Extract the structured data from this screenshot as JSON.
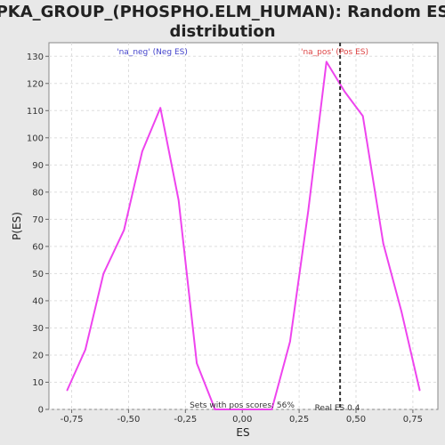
{
  "chart_data": {
    "type": "line",
    "title_lines": [
      "PKA_GROUP_(PHOSPHO.ELM_HUMAN): Random ES",
      "distribution"
    ],
    "xlabel": "ES",
    "ylabel": "P(ES)",
    "xlim": [
      -0.85,
      0.86
    ],
    "ylim": [
      0,
      135
    ],
    "xticks": [
      -0.75,
      -0.5,
      -0.25,
      0.0,
      0.25,
      0.5,
      0.75
    ],
    "xtick_labels": [
      "-0,75",
      "-0,50",
      "-0,25",
      "0,00",
      "0,25",
      "0,50",
      "0,75"
    ],
    "yticks": [
      0,
      10,
      20,
      30,
      40,
      50,
      60,
      70,
      80,
      90,
      100,
      110,
      120,
      130
    ],
    "ytick_labels": [
      "0",
      "10",
      "20",
      "30",
      "40",
      "50",
      "60",
      "70",
      "80",
      "90",
      "100",
      "110",
      "120",
      "130"
    ],
    "grid": true,
    "series": [
      {
        "color": "#ee44ee",
        "x": [
          -0.77,
          -0.69,
          -0.61,
          -0.52,
          -0.44,
          -0.36,
          -0.28,
          -0.2,
          -0.12,
          0.13,
          0.21,
          0.29,
          0.37,
          0.45,
          0.53,
          0.62,
          0.7,
          0.78
        ],
        "y": [
          7,
          22,
          50,
          66,
          95,
          111,
          77,
          17,
          0,
          0,
          25,
          73,
          128,
          117,
          108,
          61,
          36,
          7
        ]
      }
    ],
    "vline": {
      "x": 0.43,
      "color": "#333333",
      "label": "Real ES 0.4"
    },
    "annotations": {
      "neg_label": "'na_neg' (Neg ES)",
      "neg_color": "#4444cc",
      "pos_label": "'na_pos' (Pos ES)",
      "pos_color": "#dd4444",
      "pos_scores": "Sets with pos scores: 56%"
    }
  }
}
